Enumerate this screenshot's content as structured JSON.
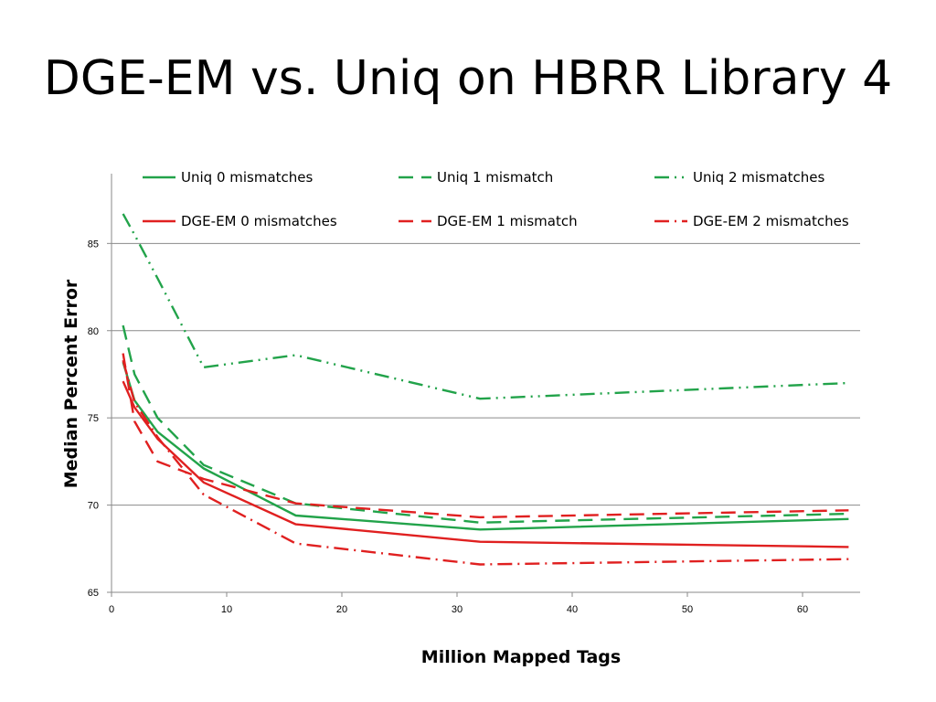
{
  "slide": {
    "title": "DGE-EM vs. Uniq on HBRR Library 4"
  },
  "chart_data": {
    "type": "line",
    "title": "",
    "xlabel": "Million Mapped Tags",
    "ylabel": "Median Percent Error",
    "xlim": [
      0,
      65
    ],
    "ylim": [
      65,
      89
    ],
    "x_ticks": [
      0,
      10,
      20,
      30,
      40,
      50,
      60
    ],
    "y_ticks": [
      65,
      70,
      75,
      80,
      85
    ],
    "grid": "horizontal",
    "legend_placement": "top",
    "x": [
      1,
      2,
      4,
      8,
      16,
      32,
      64
    ],
    "series": [
      {
        "name": "Uniq 0 mismatches",
        "color": "#22a34a",
        "dash": "solid",
        "values": [
          78.2,
          76.0,
          74.2,
          72.1,
          69.4,
          68.6,
          69.2
        ]
      },
      {
        "name": "Uniq 1 mismatch",
        "color": "#22a34a",
        "dash": "dash",
        "values": [
          80.3,
          77.5,
          75.0,
          72.3,
          70.1,
          69.0,
          69.5
        ]
      },
      {
        "name": "Uniq 2 mismatches",
        "color": "#22a34a",
        "dash": "dash-dot-dot",
        "values": [
          86.7,
          85.5,
          83.0,
          77.9,
          78.6,
          76.1,
          77.0
        ]
      },
      {
        "name": "DGE-EM 0 mismatches",
        "color": "#e02020",
        "dash": "solid",
        "values": [
          77.1,
          75.6,
          73.8,
          71.3,
          68.9,
          67.9,
          67.6
        ]
      },
      {
        "name": "DGE-EM 1 mismatch",
        "color": "#e02020",
        "dash": "dash",
        "values": [
          78.7,
          74.8,
          72.5,
          71.5,
          70.1,
          69.3,
          69.7
        ]
      },
      {
        "name": "DGE-EM 2 mismatches",
        "color": "#e02020",
        "dash": "dash-dot",
        "values": [
          78.3,
          75.9,
          73.9,
          70.6,
          67.8,
          66.6,
          66.9
        ]
      }
    ]
  }
}
